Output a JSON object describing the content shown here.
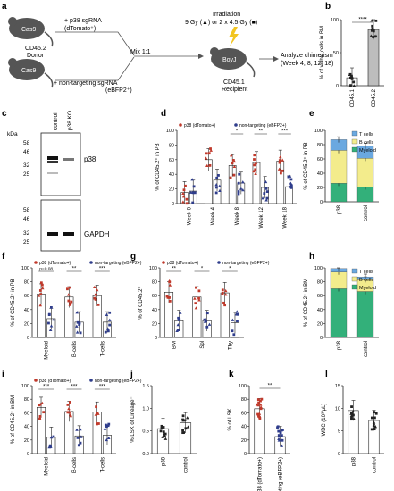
{
  "colors": {
    "p38": "#c0392b",
    "ctrl": "#2f3d8c",
    "tcell": "#6aa8e0",
    "bcell": "#f3ec8c",
    "myeloid": "#33b07a",
    "mouse": "#555555",
    "gray": "#9a9a9a",
    "sig": "#222222"
  },
  "panel_a": {
    "label": "a",
    "mouse_top": "Cas9",
    "mouse_bottom": "Cas9",
    "mouse_recipient": "BoyJ",
    "top_label_1": "+ p38 sgRNA",
    "top_label_2": "(dTomato⁺)",
    "donor_1": "CD45.2",
    "donor_2": "Donor",
    "bottom_label": "+ non-targeting sgRNA",
    "bottom_label_2": "(eBFP2⁺)",
    "mix": "Mix 1:1",
    "irr_1": "Irradiation",
    "irr_2": "9 Gy (▲) or 2 x 4.5 Gy (■)",
    "recip_1": "CD45.1",
    "recip_2": "Recipient",
    "analyze_1": "Analyze chimerism",
    "analyze_2": "(Week 4, 8, 12, 18)"
  },
  "panel_c": {
    "label": "c",
    "kda": "kDa",
    "lanes": [
      "control",
      "p38 KO"
    ],
    "markers_top": [
      "58",
      "46",
      "32",
      "25"
    ],
    "markers_bottom": [
      "58",
      "46",
      "32",
      "25"
    ],
    "protein_top": "p38",
    "protein_bottom": "GAPDH"
  },
  "chart_data": [
    {
      "id": "b",
      "label": "b",
      "type": "bar",
      "ylabel": "% of viable cells in BM",
      "ylim": [
        0,
        100
      ],
      "yticks": [
        "0",
        "50",
        "100"
      ],
      "categories": [
        "CD45.1",
        "CD45.2"
      ],
      "values": [
        12,
        85
      ],
      "sig": [
        "****"
      ]
    },
    {
      "id": "d",
      "label": "d",
      "type": "bar",
      "ylabel": "% of CD45.2⁺ in PB",
      "ylim": [
        0,
        100
      ],
      "yticks": [
        "0",
        "20",
        "40",
        "60",
        "80",
        "100"
      ],
      "legend": [
        "p38 (dTomato+)",
        "non-targeting (eBFP2+)"
      ],
      "categories": [
        "Week 0",
        "Week 4",
        "Week 8",
        "Week 12",
        "Week 18"
      ],
      "series": [
        {
          "name": "p38 (dTomato+)",
          "values": [
            15,
            60,
            52,
            56,
            58
          ]
        },
        {
          "name": "non-targeting (eBFP2+)",
          "values": [
            17,
            32,
            28,
            22,
            23
          ]
        }
      ],
      "sig": [
        "",
        "",
        "*",
        "**",
        "***"
      ]
    },
    {
      "id": "e",
      "label": "e",
      "type": "bar",
      "ylabel": "% of CD45.2⁺ in PB",
      "ylim": [
        0,
        100
      ],
      "yticks": [
        "0",
        "20",
        "40",
        "60",
        "80",
        "100"
      ],
      "stacked": true,
      "categories": [
        "p38",
        "control"
      ],
      "legend": [
        "T cells",
        "B cells",
        "Myeloid"
      ],
      "series": [
        {
          "name": "Myeloid",
          "values": [
            26,
            21
          ]
        },
        {
          "name": "B cells",
          "values": [
            46,
            40
          ]
        },
        {
          "name": "T cells",
          "values": [
            15,
            17
          ]
        }
      ]
    },
    {
      "id": "f",
      "label": "f",
      "type": "bar",
      "ylabel": "% of CD45.2⁺ in PB",
      "ylim": [
        0,
        100
      ],
      "yticks": [
        "0",
        "20",
        "40",
        "60",
        "80",
        "100"
      ],
      "legend": [
        "p38 (dTomato+)",
        "non-targeting (eBFP2+)"
      ],
      "categories": [
        "Myeloid",
        "B-cells",
        "T-cells"
      ],
      "series": [
        {
          "name": "p38 (dTomato+)",
          "values": [
            62,
            58,
            60
          ]
        },
        {
          "name": "non-targeting (eBFP2+)",
          "values": [
            27,
            22,
            22
          ]
        }
      ],
      "sig": [
        "p=0.08",
        "**",
        "***"
      ]
    },
    {
      "id": "g",
      "label": "g",
      "type": "bar",
      "ylabel": "% of CD45.2⁺",
      "ylim": [
        0,
        100
      ],
      "yticks": [
        "0",
        "20",
        "40",
        "60",
        "80",
        "100"
      ],
      "legend": [
        "p38 (dTomato+)",
        "non-targeting (eBFP2+)"
      ],
      "categories": [
        "BM",
        "Spl",
        "Thy"
      ],
      "series": [
        {
          "name": "p38 (dTomato+)",
          "values": [
            65,
            58,
            64
          ]
        },
        {
          "name": "non-targeting (eBFP2+)",
          "values": [
            24,
            24,
            21
          ]
        }
      ],
      "sig": [
        "**",
        "*",
        "*"
      ]
    },
    {
      "id": "h",
      "label": "h",
      "type": "bar",
      "ylabel": "% of CD45.2⁺ in BM",
      "ylim": [
        0,
        100
      ],
      "yticks": [
        "0",
        "20",
        "40",
        "60",
        "80",
        "100"
      ],
      "stacked": true,
      "categories": [
        "p38",
        "control"
      ],
      "legend": [
        "T cells",
        "B cells",
        "Myeloid"
      ],
      "series": [
        {
          "name": "Myeloid",
          "values": [
            70,
            66
          ]
        },
        {
          "name": "B cells",
          "values": [
            24,
            17
          ]
        },
        {
          "name": "T cells",
          "values": [
            5,
            4
          ]
        }
      ]
    },
    {
      "id": "i",
      "label": "i",
      "type": "bar",
      "ylabel": "% of CD45.2⁺ in BM",
      "ylim": [
        0,
        100
      ],
      "yticks": [
        "0",
        "20",
        "40",
        "60",
        "80",
        "100"
      ],
      "legend": [
        "p38 (dTomato+)",
        "non-targeting (eBFP2+)"
      ],
      "categories": [
        "Myeloid",
        "B-cells",
        "T-cells"
      ],
      "series": [
        {
          "name": "p38 (dTomato+)",
          "values": [
            68,
            62,
            61
          ]
        },
        {
          "name": "non-targeting (eBFP2+)",
          "values": [
            24,
            26,
            27
          ]
        }
      ],
      "sig": [
        "***",
        "***",
        "***"
      ]
    },
    {
      "id": "j",
      "label": "j",
      "type": "bar",
      "ylabel": "% LSK of Lineage⁻",
      "ylim": [
        0,
        1.5
      ],
      "yticks": [
        "0.0",
        "0.5",
        "1.0",
        "1.5"
      ],
      "categories": [
        "p38",
        "control"
      ],
      "values": [
        0.55,
        0.68
      ]
    },
    {
      "id": "k",
      "label": "k",
      "type": "bar",
      "ylabel": "% of LSK",
      "ylim": [
        0,
        100
      ],
      "yticks": [
        "0",
        "20",
        "40",
        "60",
        "80",
        "100"
      ],
      "categories": [
        "p38 (dTomato+)",
        "non-targeting (eBFP2+)"
      ],
      "values": [
        66,
        25
      ],
      "sig": [
        "**"
      ]
    },
    {
      "id": "l",
      "label": "l",
      "type": "bar",
      "ylabel": "WBC (10³/μL)",
      "ylim": [
        0,
        15
      ],
      "yticks": [
        "0",
        "5",
        "10",
        "15"
      ],
      "categories": [
        "p38",
        "control"
      ],
      "values": [
        9.5,
        7.3
      ]
    }
  ]
}
